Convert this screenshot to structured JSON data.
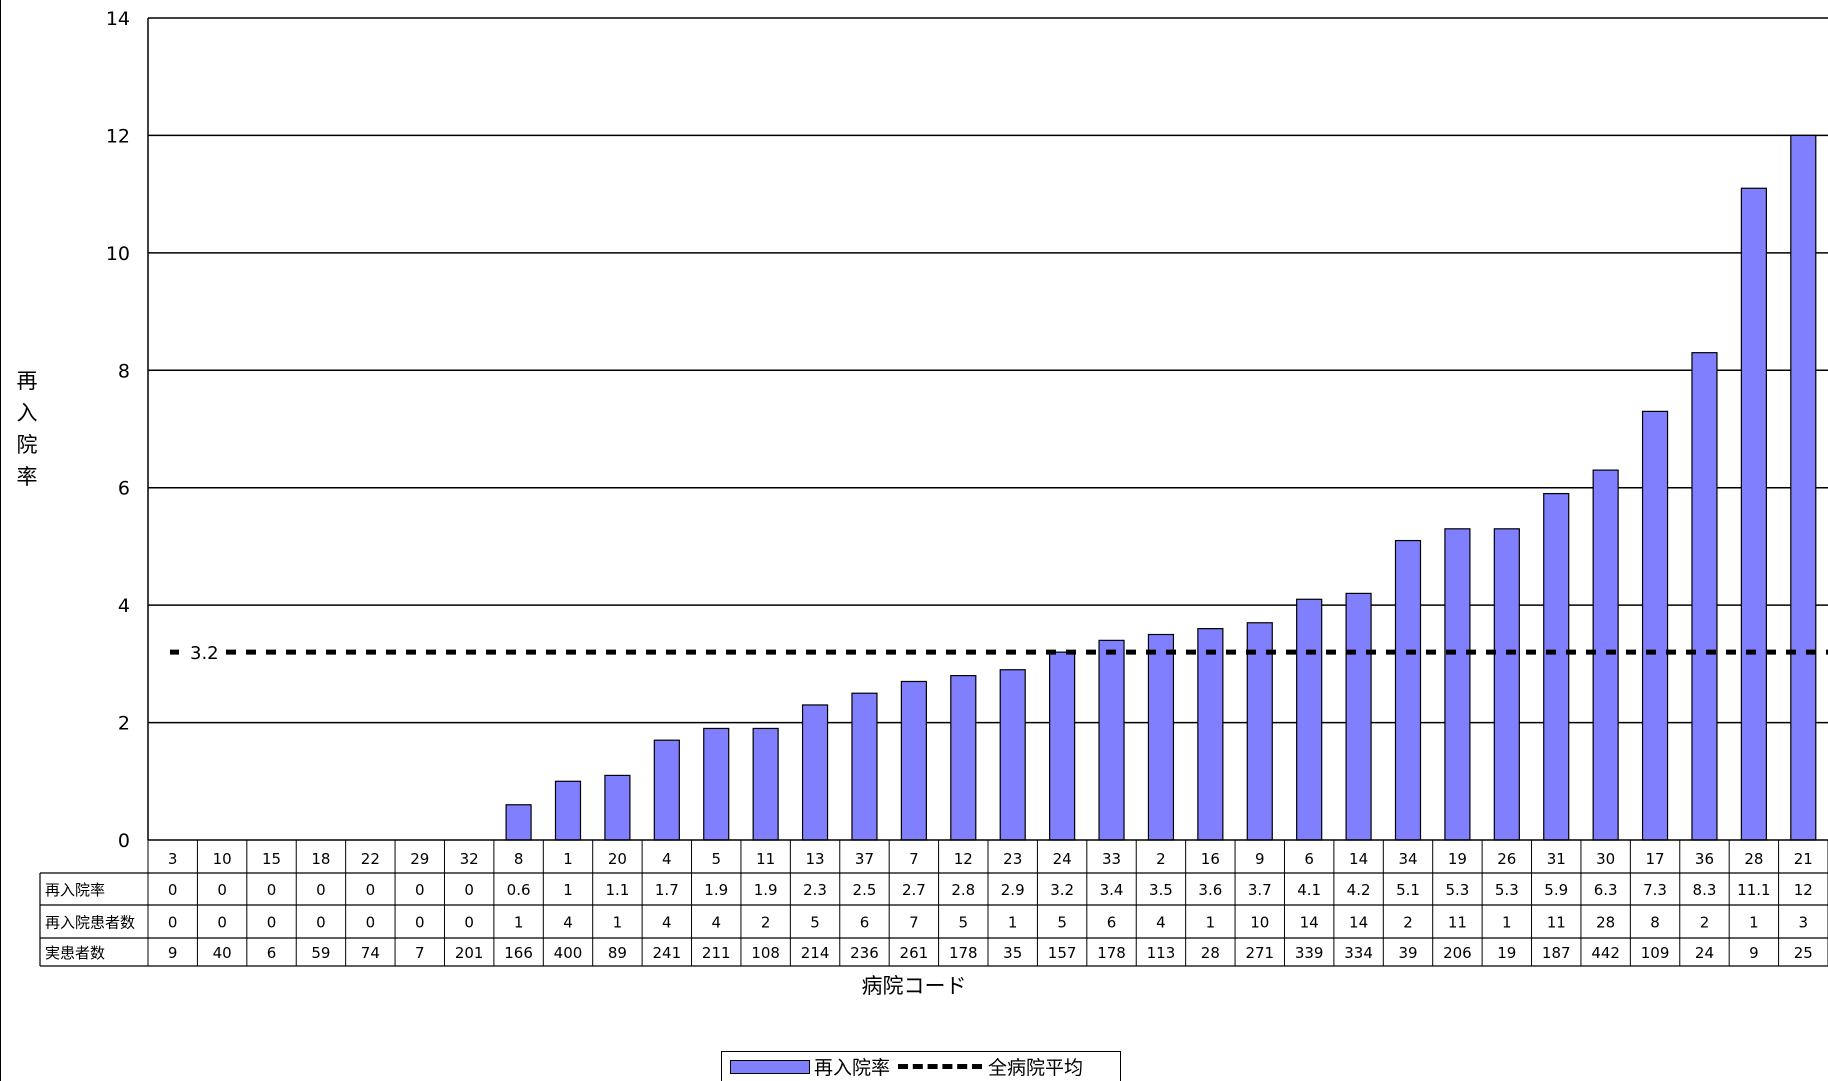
{
  "chart_data": {
    "type": "bar",
    "title": "",
    "xlabel": "病院コード",
    "ylabel": "再入院率",
    "ylim": [
      0,
      14
    ],
    "yticks": [
      0,
      2,
      4,
      6,
      8,
      10,
      12,
      14
    ],
    "grid": true,
    "categories": [
      "3",
      "10",
      "15",
      "18",
      "22",
      "29",
      "32",
      "8",
      "1",
      "20",
      "4",
      "5",
      "11",
      "13",
      "37",
      "7",
      "12",
      "23",
      "24",
      "33",
      "2",
      "16",
      "9",
      "6",
      "14",
      "34",
      "19",
      "26",
      "31",
      "30",
      "17",
      "36",
      "28",
      "21"
    ],
    "series": [
      {
        "name": "再入院率",
        "color": "#8080ff",
        "values": [
          0,
          0,
          0,
          0,
          0,
          0,
          0,
          0.6,
          1,
          1.1,
          1.7,
          1.9,
          1.9,
          2.3,
          2.5,
          2.7,
          2.8,
          2.9,
          3.2,
          3.4,
          3.5,
          3.6,
          3.7,
          4.1,
          4.2,
          5.1,
          5.3,
          5.3,
          5.9,
          6.3,
          7.3,
          8.3,
          11.1,
          12
        ]
      }
    ],
    "reference_line": {
      "name": "全病院平均",
      "value": 3.2,
      "label": "3.2",
      "style": "dashed"
    },
    "table": {
      "rows": [
        {
          "label": "再入院率",
          "values": [
            "0",
            "0",
            "0",
            "0",
            "0",
            "0",
            "0",
            "0.6",
            "1",
            "1.1",
            "1.7",
            "1.9",
            "1.9",
            "2.3",
            "2.5",
            "2.7",
            "2.8",
            "2.9",
            "3.2",
            "3.4",
            "3.5",
            "3.6",
            "3.7",
            "4.1",
            "4.2",
            "5.1",
            "5.3",
            "5.3",
            "5.9",
            "6.3",
            "7.3",
            "8.3",
            "11.1",
            "12"
          ]
        },
        {
          "label": "再入院患者数",
          "values": [
            "0",
            "0",
            "0",
            "0",
            "0",
            "0",
            "0",
            "1",
            "4",
            "1",
            "4",
            "4",
            "2",
            "5",
            "6",
            "7",
            "5",
            "1",
            "5",
            "6",
            "4",
            "1",
            "10",
            "14",
            "14",
            "2",
            "11",
            "1",
            "11",
            "28",
            "8",
            "2",
            "1",
            "3"
          ]
        },
        {
          "label": "実患者数",
          "values": [
            "9",
            "40",
            "6",
            "59",
            "74",
            "7",
            "201",
            "166",
            "400",
            "89",
            "241",
            "211",
            "108",
            "214",
            "236",
            "261",
            "178",
            "35",
            "157",
            "178",
            "113",
            "28",
            "271",
            "339",
            "334",
            "39",
            "206",
            "19",
            "187",
            "442",
            "109",
            "24",
            "9",
            "25"
          ]
        }
      ]
    },
    "legend": {
      "position": "bottom-center",
      "items": [
        {
          "label": "再入院率",
          "kind": "bar"
        },
        {
          "label": "全病院平均",
          "kind": "dashed-line"
        }
      ]
    }
  }
}
